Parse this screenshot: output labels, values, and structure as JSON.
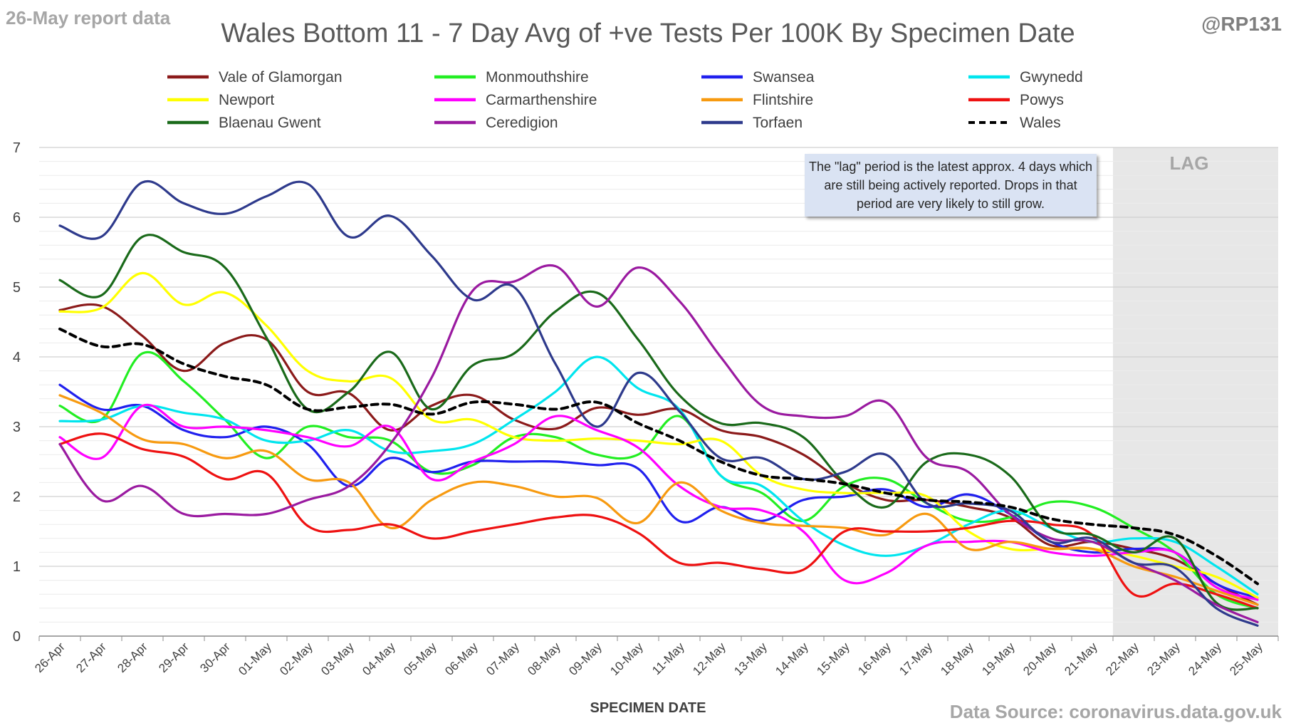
{
  "header": {
    "report_label": "26-May report data",
    "handle": "@RP131",
    "source": "Data Source: coronavirus.data.gov.uk"
  },
  "annotation": {
    "lag_label": "LAG",
    "note": "The \"lag\" period is the latest approx. 4 days which are still being actively reported. Drops in that period are very likely to still grow."
  },
  "chart_data": {
    "type": "line",
    "title": "Wales Bottom 11 - 7 Day Avg of +ve Tests Per 100K By Specimen Date",
    "xlabel": "SPECIMEN DATE",
    "ylabel": "",
    "ylim": [
      0,
      7
    ],
    "yticks": [
      0,
      1,
      2,
      3,
      4,
      5,
      6,
      7
    ],
    "grid": true,
    "legend_position": "top",
    "lag_start": "22-May",
    "categories": [
      "26-Apr",
      "27-Apr",
      "28-Apr",
      "29-Apr",
      "30-Apr",
      "01-May",
      "02-May",
      "03-May",
      "04-May",
      "05-May",
      "06-May",
      "07-May",
      "08-May",
      "09-May",
      "10-May",
      "11-May",
      "12-May",
      "13-May",
      "14-May",
      "15-May",
      "16-May",
      "17-May",
      "18-May",
      "19-May",
      "20-May",
      "21-May",
      "22-May",
      "23-May",
      "24-May",
      "25-May"
    ],
    "series": [
      {
        "name": "Vale of Glamorgan",
        "color": "#8b1a1a",
        "dash": false,
        "values": [
          4.67,
          4.73,
          4.3,
          3.8,
          4.2,
          4.25,
          3.5,
          3.48,
          2.95,
          3.3,
          3.45,
          3.1,
          2.97,
          3.27,
          3.17,
          3.25,
          2.95,
          2.85,
          2.6,
          2.2,
          1.95,
          1.95,
          1.85,
          1.7,
          1.3,
          1.35,
          1.25,
          1.1,
          0.75,
          0.45
        ]
      },
      {
        "name": "Monmouthshire",
        "color": "#22ee22",
        "dash": false,
        "values": [
          3.3,
          3.1,
          4.05,
          3.65,
          3.1,
          2.55,
          3.0,
          2.85,
          2.8,
          2.35,
          2.45,
          2.85,
          2.85,
          2.6,
          2.6,
          3.15,
          2.3,
          2.05,
          1.65,
          2.15,
          2.25,
          1.9,
          1.65,
          1.7,
          1.92,
          1.85,
          1.55,
          1.2,
          0.6,
          0.4
        ]
      },
      {
        "name": "Swansea",
        "color": "#2020ee",
        "dash": false,
        "values": [
          3.6,
          3.25,
          3.3,
          2.95,
          2.85,
          3.0,
          2.75,
          2.15,
          2.55,
          2.35,
          2.5,
          2.5,
          2.5,
          2.45,
          2.4,
          1.65,
          1.85,
          1.65,
          1.95,
          2.0,
          2.1,
          1.85,
          2.03,
          1.75,
          1.35,
          1.2,
          1.25,
          1.2,
          0.75,
          0.55
        ]
      },
      {
        "name": "Gwynedd",
        "color": "#00e5ee",
        "dash": false,
        "values": [
          3.08,
          3.1,
          3.3,
          3.2,
          3.1,
          2.8,
          2.8,
          2.95,
          2.65,
          2.65,
          2.75,
          3.1,
          3.5,
          4.0,
          3.55,
          3.25,
          2.3,
          2.15,
          1.65,
          1.3,
          1.15,
          1.3,
          1.6,
          1.8,
          1.55,
          1.35,
          1.4,
          1.35,
          1.0,
          0.6
        ]
      },
      {
        "name": "Newport",
        "color": "#ffff00",
        "dash": false,
        "values": [
          4.65,
          4.7,
          5.2,
          4.75,
          4.92,
          4.45,
          3.8,
          3.65,
          3.7,
          3.1,
          3.1,
          2.85,
          2.8,
          2.83,
          2.8,
          2.75,
          2.8,
          2.3,
          2.1,
          2.05,
          2.05,
          2.0,
          1.5,
          1.25,
          1.25,
          1.25,
          1.15,
          1.0,
          0.85,
          0.55
        ]
      },
      {
        "name": "Carmarthenshire",
        "color": "#ff00ff",
        "dash": false,
        "values": [
          2.85,
          2.55,
          3.3,
          3.0,
          3.0,
          2.95,
          2.85,
          2.72,
          3.0,
          2.25,
          2.5,
          2.75,
          3.15,
          2.95,
          2.7,
          2.15,
          1.85,
          1.8,
          1.5,
          0.8,
          0.9,
          1.3,
          1.35,
          1.35,
          1.2,
          1.15,
          1.2,
          1.2,
          0.7,
          0.52
        ]
      },
      {
        "name": "Flintshire",
        "color": "#f79a10",
        "dash": false,
        "values": [
          3.45,
          3.2,
          2.82,
          2.75,
          2.55,
          2.65,
          2.25,
          2.2,
          1.55,
          1.95,
          2.2,
          2.15,
          2.0,
          1.98,
          1.62,
          2.2,
          1.8,
          1.62,
          1.58,
          1.55,
          1.45,
          1.75,
          1.25,
          1.35,
          1.25,
          1.25,
          1.0,
          0.85,
          0.65,
          0.45
        ]
      },
      {
        "name": "Powys",
        "color": "#ee1111",
        "dash": false,
        "values": [
          2.75,
          2.9,
          2.68,
          2.57,
          2.25,
          2.33,
          1.58,
          1.52,
          1.6,
          1.4,
          1.5,
          1.6,
          1.7,
          1.72,
          1.48,
          1.05,
          1.05,
          0.96,
          0.95,
          1.5,
          1.5,
          1.5,
          1.55,
          1.65,
          1.6,
          1.45,
          0.6,
          0.75,
          0.6,
          0.4
        ]
      },
      {
        "name": "Blaenau Gwent",
        "color": "#1a6a1a",
        "dash": false,
        "values": [
          5.1,
          4.88,
          5.72,
          5.5,
          5.28,
          4.28,
          3.25,
          3.5,
          4.07,
          3.25,
          3.88,
          4.05,
          4.65,
          4.92,
          4.25,
          3.45,
          3.05,
          3.05,
          2.85,
          2.2,
          1.85,
          2.5,
          2.6,
          2.3,
          1.55,
          1.45,
          1.2,
          1.4,
          0.48,
          0.4
        ]
      },
      {
        "name": "Ceredigion",
        "color": "#9a1aa0",
        "dash": false,
        "values": [
          2.75,
          1.95,
          2.15,
          1.75,
          1.75,
          1.75,
          1.95,
          2.15,
          2.75,
          3.7,
          4.95,
          5.08,
          5.3,
          4.72,
          5.28,
          4.8,
          4.0,
          3.3,
          3.15,
          3.15,
          3.35,
          2.55,
          2.35,
          1.75,
          1.4,
          1.35,
          1.05,
          0.8,
          0.45,
          0.2
        ]
      },
      {
        "name": "Torfaen",
        "color": "#2e3a8c",
        "dash": false,
        "values": [
          5.88,
          5.72,
          6.5,
          6.2,
          6.05,
          6.3,
          6.48,
          5.72,
          6.02,
          5.45,
          4.82,
          5.0,
          3.9,
          3.0,
          3.77,
          3.22,
          2.55,
          2.55,
          2.25,
          2.35,
          2.6,
          1.9,
          1.9,
          1.8,
          1.35,
          1.4,
          1.05,
          0.98,
          0.4,
          0.15
        ]
      },
      {
        "name": "Wales",
        "color": "#000000",
        "dash": true,
        "values": [
          4.4,
          4.15,
          4.18,
          3.9,
          3.72,
          3.6,
          3.25,
          3.28,
          3.32,
          3.18,
          3.35,
          3.32,
          3.25,
          3.35,
          3.05,
          2.8,
          2.5,
          2.3,
          2.25,
          2.18,
          2.05,
          1.95,
          1.92,
          1.85,
          1.68,
          1.6,
          1.55,
          1.45,
          1.15,
          0.75
        ]
      }
    ]
  }
}
